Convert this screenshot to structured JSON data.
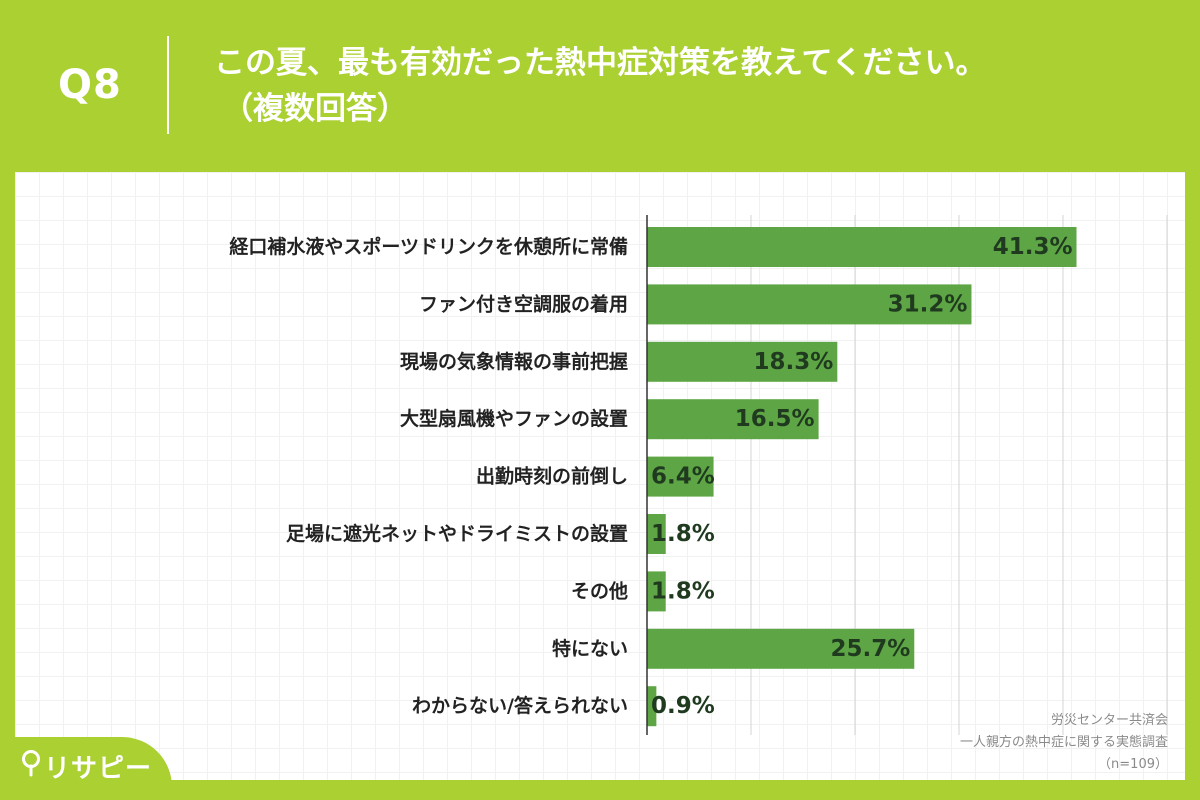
{
  "header": {
    "qnum": "Q8",
    "title_line1": "この夏、最も有効だった熱中症対策を教えてください。",
    "title_line2": "（複数回答）"
  },
  "chart_data": {
    "type": "bar",
    "orientation": "horizontal",
    "categories": [
      "経口補水液やスポーツドリンクを休憩所に常備",
      "ファン付き空調服の着用",
      "現場の気象情報の事前把握",
      "大型扇風機やファンの設置",
      "出勤時刻の前倒し",
      "足場に遮光ネットやドライミストの設置",
      "その他",
      "特にない",
      "わからない/答えられない"
    ],
    "values": [
      41.3,
      31.2,
      18.3,
      16.5,
      6.4,
      1.8,
      1.8,
      25.7,
      0.9
    ],
    "value_labels": [
      "41.3%",
      "31.2%",
      "18.3%",
      "16.5%",
      "6.4%",
      "1.8%",
      "1.8%",
      "25.7%",
      "0.9%"
    ],
    "xlim": [
      0,
      50
    ],
    "grid": true,
    "bar_color": "#5ea645"
  },
  "source": {
    "line1": "労災センター共済会",
    "line2": "一人親方の熱中症に関する実態調査",
    "line3": "（n=109）"
  },
  "logo": {
    "text": "リサピー"
  },
  "colors": {
    "background": "#abd032",
    "panel": "#ffffff",
    "bar": "#5ea645"
  }
}
